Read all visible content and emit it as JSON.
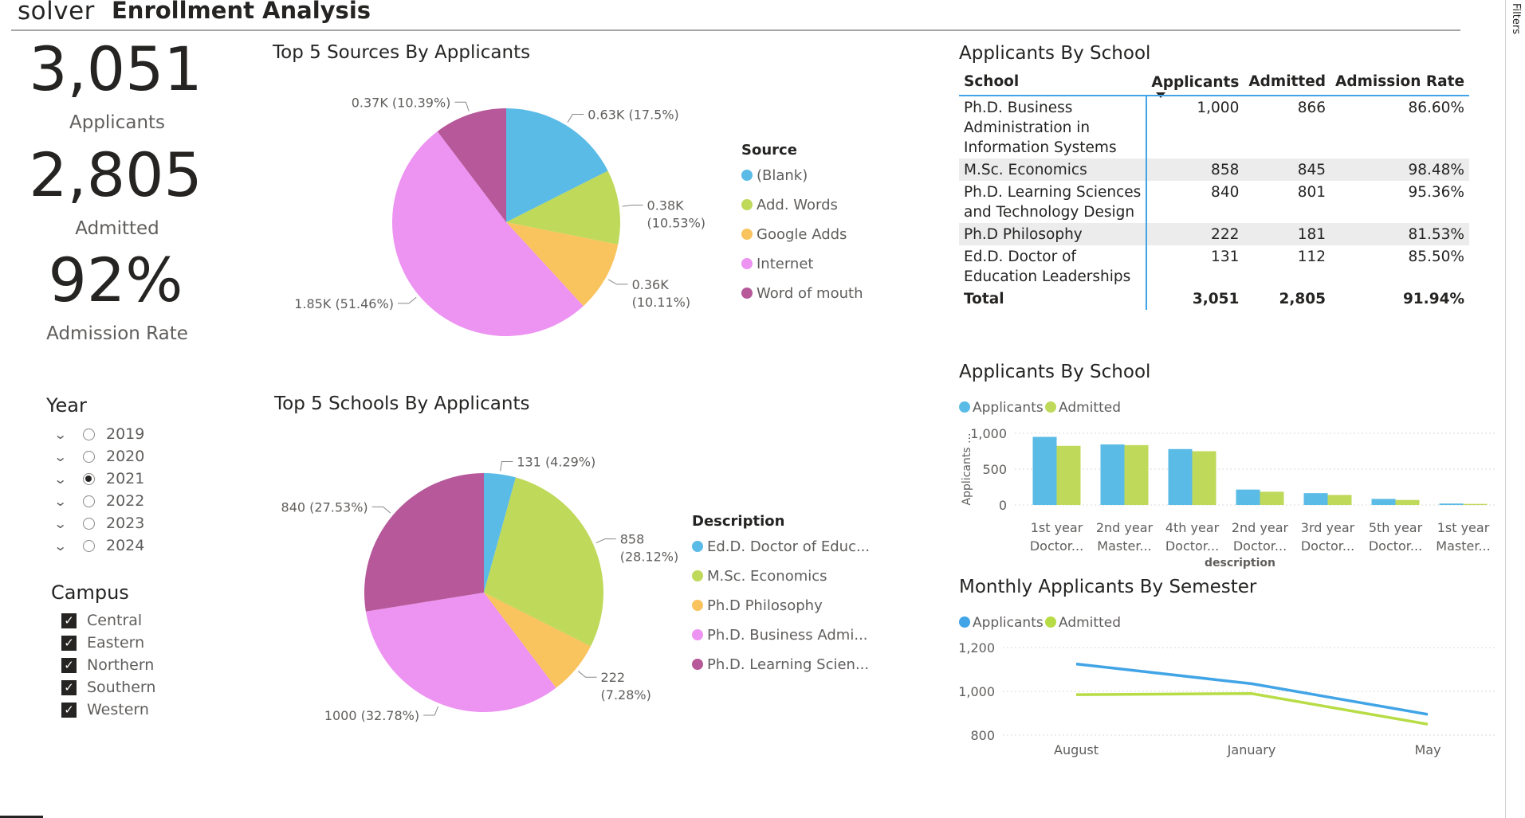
{
  "header": {
    "brand": "solver",
    "title": "Enrollment Analysis",
    "filters_label": "Filters"
  },
  "kpis": [
    {
      "value": "3,051",
      "label": "Applicants"
    },
    {
      "value": "2,805",
      "label": "Admitted"
    },
    {
      "value": "92%",
      "label": "Admission Rate"
    }
  ],
  "year_slicer": {
    "title": "Year",
    "options": [
      {
        "label": "2019",
        "selected": false
      },
      {
        "label": "2020",
        "selected": false
      },
      {
        "label": "2021",
        "selected": true
      },
      {
        "label": "2022",
        "selected": false
      },
      {
        "label": "2023",
        "selected": false
      },
      {
        "label": "2024",
        "selected": false
      }
    ]
  },
  "campus_slicer": {
    "title": "Campus",
    "options": [
      {
        "label": "Central",
        "checked": true
      },
      {
        "label": "Eastern",
        "checked": true
      },
      {
        "label": "Northern",
        "checked": true
      },
      {
        "label": "Southern",
        "checked": true
      },
      {
        "label": "Western",
        "checked": true
      }
    ]
  },
  "table": {
    "title": "Applicants By School",
    "columns": [
      "School",
      "Applicants",
      "Admitted",
      "Admission Rate"
    ],
    "rows": [
      {
        "school": "Ph.D. Business Administration in Information Systems",
        "applicants": "1,000",
        "admitted": "866",
        "rate": "86.60%"
      },
      {
        "school": "M.Sc. Economics",
        "applicants": "858",
        "admitted": "845",
        "rate": "98.48%"
      },
      {
        "school": "Ph.D. Learning Sciences and Technology Design",
        "applicants": "840",
        "admitted": "801",
        "rate": "95.36%"
      },
      {
        "school": "Ph.D Philosophy",
        "applicants": "222",
        "admitted": "181",
        "rate": "81.53%"
      },
      {
        "school": "Ed.D. Doctor of Education Leaderships",
        "applicants": "131",
        "admitted": "112",
        "rate": "85.50%"
      }
    ],
    "total": {
      "school": "Total",
      "applicants": "3,051",
      "admitted": "2,805",
      "rate": "91.94%"
    }
  },
  "colors": {
    "blue": "#5abbe6",
    "green": "#bfd95a",
    "orange": "#f9c35e",
    "pink": "#ed93f1",
    "purple": "#b6589a",
    "line_blue": "#41a4e6",
    "line_green": "#b8dc46"
  },
  "chart_data": [
    {
      "id": "sources",
      "type": "pie",
      "title": "Top 5 Sources By Applicants",
      "legend_title": "Source",
      "legend_position": "right",
      "slices": [
        {
          "label": "(Blank)",
          "value": 0.63,
          "data_label": "0.63K (17.5%)",
          "color": "#5abbe6"
        },
        {
          "label": "Add. Words",
          "value": 0.38,
          "data_label": "0.38K (10.53%)",
          "color": "#bfd95a"
        },
        {
          "label": "Google Adds",
          "value": 0.36,
          "data_label": "0.36K (10.11%)",
          "color": "#f9c35e"
        },
        {
          "label": "Internet",
          "value": 1.85,
          "data_label": "1.85K (51.46%)",
          "color": "#ed93f1"
        },
        {
          "label": "Word of mouth",
          "value": 0.37,
          "data_label": "0.37K (10.39%)",
          "color": "#b6589a"
        }
      ]
    },
    {
      "id": "schools",
      "type": "pie",
      "title": "Top 5 Schools By Applicants",
      "legend_title": "Description",
      "legend_position": "right",
      "slices": [
        {
          "label": "Ed.D. Doctor of Educ...",
          "value": 131,
          "data_label": "131 (4.29%)",
          "color": "#5abbe6"
        },
        {
          "label": "M.Sc. Economics",
          "value": 858,
          "data_label": "858 (28.12%)",
          "color": "#bfd95a"
        },
        {
          "label": "Ph.D Philosophy",
          "value": 222,
          "data_label": "222 (7.28%)",
          "color": "#f9c35e"
        },
        {
          "label": "Ph.D. Business Admi...",
          "value": 1000,
          "data_label": "1000 (32.78%)",
          "color": "#ed93f1"
        },
        {
          "label": "Ph.D. Learning Scien...",
          "value": 840,
          "data_label": "840 (27.53%)",
          "color": "#b6589a"
        }
      ]
    },
    {
      "id": "school-bars",
      "type": "bar",
      "title": "Applicants By School",
      "xlabel": "description",
      "ylabel": "Applicants ...",
      "ylim": [
        0,
        1000
      ],
      "yticks": [
        "1,000",
        "500",
        "0"
      ],
      "legend_position": "top-left",
      "categories": [
        [
          "1st year",
          "Doctor..."
        ],
        [
          "2nd year",
          "Master..."
        ],
        [
          "4th year",
          "Doctor..."
        ],
        [
          "2nd year",
          "Doctor..."
        ],
        [
          "3rd year",
          "Doctor..."
        ],
        [
          "5th year",
          "Doctor..."
        ],
        [
          "1st year",
          "Master..."
        ]
      ],
      "series": [
        {
          "name": "Applicants",
          "color": "#5abbe6",
          "values": [
            950,
            845,
            780,
            215,
            165,
            85,
            20
          ]
        },
        {
          "name": "Admitted",
          "color": "#bfd95a",
          "values": [
            825,
            835,
            750,
            185,
            140,
            70,
            15
          ]
        }
      ]
    },
    {
      "id": "semester-lines",
      "type": "line",
      "title": "Monthly Applicants By Semester",
      "ylim": [
        800,
        1200
      ],
      "yticks": [
        "1,200",
        "1,000",
        "800"
      ],
      "legend_position": "top-left",
      "categories": [
        "August",
        "January",
        "May"
      ],
      "series": [
        {
          "name": "Applicants",
          "color": "#41a4e6",
          "values": [
            1125,
            1035,
            895
          ]
        },
        {
          "name": "Admitted",
          "color": "#b8dc46",
          "values": [
            985,
            990,
            850
          ]
        }
      ]
    }
  ]
}
